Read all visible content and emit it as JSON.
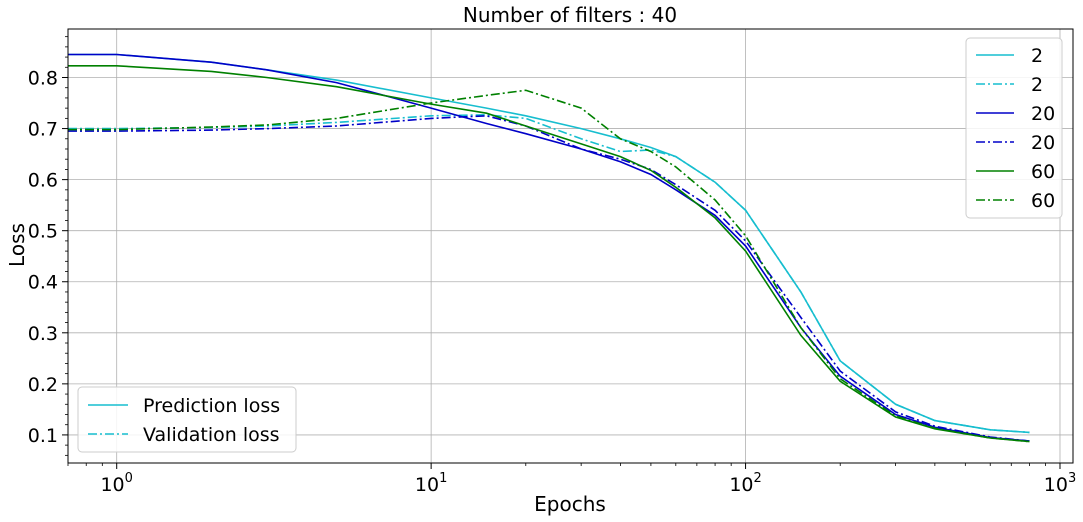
{
  "chart_data": {
    "type": "line",
    "title": "Number of filters : 40",
    "xlabel": "Epochs",
    "ylabel": "Loss",
    "xscale": "log",
    "xlim": [
      0.7,
      1100
    ],
    "ylim": [
      0.045,
      0.895
    ],
    "grid": true,
    "x_ticks": [
      {
        "value": 1,
        "base": "10",
        "exp": "0"
      },
      {
        "value": 10,
        "base": "10",
        "exp": "1"
      },
      {
        "value": 100,
        "base": "10",
        "exp": "2"
      },
      {
        "value": 1000,
        "base": "10",
        "exp": "3"
      }
    ],
    "y_ticks": [
      "0.1",
      "0.2",
      "0.3",
      "0.4",
      "0.5",
      "0.6",
      "0.7",
      "0.8"
    ],
    "x": [
      0.7,
      1,
      2,
      3,
      5,
      10,
      15,
      20,
      30,
      40,
      50,
      60,
      80,
      100,
      150,
      200,
      300,
      400,
      600,
      800
    ],
    "series": [
      {
        "name": "2",
        "color": "#17becf",
        "dash": "solid",
        "values": [
          0.845,
          0.845,
          0.83,
          0.815,
          0.795,
          0.76,
          0.74,
          0.725,
          0.7,
          0.68,
          0.663,
          0.645,
          0.595,
          0.54,
          0.38,
          0.245,
          0.16,
          0.128,
          0.11,
          0.105
        ]
      },
      {
        "name": "2",
        "color": "#17becf",
        "dash": "dashdot",
        "values": [
          0.7,
          0.7,
          0.702,
          0.705,
          0.712,
          0.725,
          0.727,
          0.72,
          0.68,
          0.655,
          0.658,
          0.645,
          0.595,
          0.54,
          0.38,
          0.245,
          0.16,
          0.128,
          0.11,
          0.105
        ]
      },
      {
        "name": "20",
        "color": "#0000c8",
        "dash": "solid",
        "values": [
          0.845,
          0.845,
          0.83,
          0.815,
          0.79,
          0.74,
          0.71,
          0.69,
          0.66,
          0.635,
          0.61,
          0.58,
          0.53,
          0.47,
          0.31,
          0.215,
          0.14,
          0.115,
          0.095,
          0.088
        ]
      },
      {
        "name": "20",
        "color": "#0000c8",
        "dash": "dashdot",
        "values": [
          0.695,
          0.695,
          0.697,
          0.7,
          0.705,
          0.72,
          0.725,
          0.705,
          0.66,
          0.64,
          0.62,
          0.59,
          0.54,
          0.48,
          0.33,
          0.225,
          0.145,
          0.117,
          0.096,
          0.088
        ]
      },
      {
        "name": "60",
        "color": "#008000",
        "dash": "solid",
        "values": [
          0.823,
          0.823,
          0.812,
          0.8,
          0.782,
          0.748,
          0.73,
          0.705,
          0.67,
          0.645,
          0.618,
          0.585,
          0.525,
          0.46,
          0.295,
          0.205,
          0.135,
          0.112,
          0.094,
          0.087
        ]
      },
      {
        "name": "60",
        "color": "#008000",
        "dash": "dashdot",
        "values": [
          0.698,
          0.698,
          0.703,
          0.707,
          0.72,
          0.75,
          0.765,
          0.775,
          0.74,
          0.68,
          0.655,
          0.625,
          0.56,
          0.49,
          0.31,
          0.21,
          0.137,
          0.113,
          0.094,
          0.087
        ]
      }
    ],
    "legend_series": {
      "position": "top-right"
    },
    "legend_loss": {
      "position": "bottom-left",
      "entries": [
        {
          "label": "Prediction loss",
          "color": "#17becf",
          "dash": "solid"
        },
        {
          "label": "Validation loss",
          "color": "#17becf",
          "dash": "dashdot"
        }
      ]
    }
  }
}
